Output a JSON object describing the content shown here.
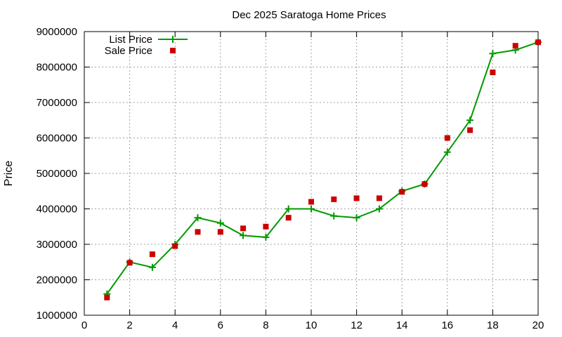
{
  "chart_data": {
    "type": "line",
    "title": "Dec 2025 Saratoga Home Prices",
    "xlabel": "",
    "ylabel": "Price",
    "xlim": [
      0,
      20
    ],
    "ylim": [
      1000000,
      9000000
    ],
    "x_ticks": [
      0,
      2,
      4,
      6,
      8,
      10,
      12,
      14,
      16,
      18,
      20
    ],
    "y_ticks": [
      1000000,
      2000000,
      3000000,
      4000000,
      5000000,
      6000000,
      7000000,
      8000000,
      9000000
    ],
    "grid": true,
    "legend_position": "top-left",
    "series": [
      {
        "name": "List Price",
        "style": "line-with-plus-markers",
        "color": "#009900",
        "x": [
          1,
          2,
          3,
          4,
          5,
          6,
          7,
          8,
          9,
          10,
          11,
          12,
          13,
          14,
          15,
          16,
          17,
          18,
          19,
          20
        ],
        "values": [
          1600000,
          2500000,
          2350000,
          3000000,
          3750000,
          3600000,
          3250000,
          3200000,
          4000000,
          4000000,
          3800000,
          3750000,
          4000000,
          4500000,
          4700000,
          5600000,
          6500000,
          8380000,
          8480000,
          8700000
        ]
      },
      {
        "name": "Sale Price",
        "style": "square-markers",
        "color": "#cc0000",
        "x": [
          1,
          2,
          3,
          4,
          5,
          6,
          7,
          8,
          9,
          10,
          11,
          12,
          13,
          14,
          15,
          16,
          17,
          18,
          19,
          20
        ],
        "values": [
          1500000,
          2480000,
          2720000,
          2950000,
          3350000,
          3350000,
          3450000,
          3500000,
          3750000,
          4200000,
          4270000,
          4300000,
          4300000,
          4480000,
          4700000,
          6000000,
          6220000,
          7850000,
          8600000,
          8700000
        ]
      }
    ]
  }
}
